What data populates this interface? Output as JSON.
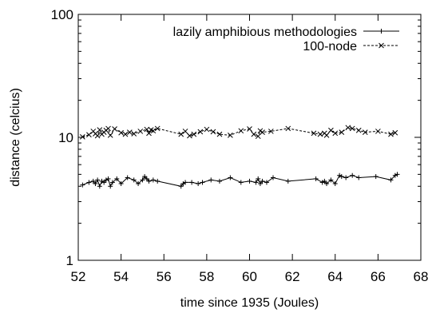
{
  "chart_data": {
    "type": "line",
    "title": "",
    "xlabel": "time since 1935 (Joules)",
    "ylabel": "distance (celcius)",
    "xlim": [
      52,
      68
    ],
    "ylim": [
      1,
      100
    ],
    "yscale": "log",
    "xticks": [
      "52",
      "54",
      "56",
      "58",
      "60",
      "62",
      "64",
      "66",
      "68"
    ],
    "yticks": [
      "1",
      "10",
      "100"
    ],
    "legend_position": "top-right",
    "grid": false,
    "series": [
      {
        "name": "lazily amphibious methodologies",
        "line_style": "solid",
        "marker": "plus",
        "color": "#000000",
        "x": [
          52.2,
          52.5,
          52.7,
          52.8,
          52.9,
          53.0,
          53.1,
          53.2,
          53.3,
          53.4,
          53.5,
          53.6,
          53.8,
          54.0,
          54.3,
          54.6,
          54.8,
          55.0,
          55.1,
          55.2,
          55.3,
          55.5,
          55.7,
          56.8,
          56.9,
          57.0,
          57.3,
          57.6,
          57.8,
          58.2,
          58.6,
          59.1,
          59.6,
          60.0,
          60.3,
          60.4,
          60.5,
          60.6,
          60.8,
          61.1,
          61.8,
          63.1,
          63.4,
          63.5,
          63.6,
          63.8,
          64.0,
          64.2,
          64.3,
          64.5,
          64.8,
          65.1,
          65.9,
          66.6,
          66.8,
          66.9
        ],
        "y": [
          4.1,
          4.3,
          4.4,
          4.2,
          4.5,
          4.0,
          4.4,
          4.3,
          4.5,
          4.6,
          4.0,
          4.3,
          4.6,
          4.2,
          4.7,
          4.5,
          4.2,
          4.5,
          4.8,
          4.6,
          4.4,
          4.5,
          4.4,
          4.0,
          4.2,
          4.3,
          4.3,
          4.2,
          4.3,
          4.5,
          4.4,
          4.7,
          4.3,
          4.4,
          4.3,
          4.6,
          4.2,
          4.4,
          4.3,
          4.7,
          4.4,
          4.6,
          4.3,
          4.4,
          4.2,
          4.5,
          4.2,
          4.9,
          4.8,
          4.7,
          4.9,
          4.7,
          4.8,
          4.5,
          4.9,
          5.0
        ]
      },
      {
        "name": "100-node",
        "line_style": "dashed",
        "marker": "x",
        "color": "#000000",
        "x": [
          52.2,
          52.5,
          52.7,
          52.8,
          52.9,
          53.0,
          53.1,
          53.2,
          53.3,
          53.4,
          53.5,
          53.7,
          54.0,
          54.2,
          54.4,
          54.6,
          54.9,
          55.2,
          55.3,
          55.4,
          55.5,
          55.7,
          56.8,
          57.0,
          57.2,
          57.4,
          57.7,
          58.0,
          58.3,
          58.6,
          59.1,
          59.6,
          60.0,
          60.2,
          60.4,
          60.5,
          60.6,
          61.0,
          61.8,
          63.0,
          63.3,
          63.5,
          63.6,
          63.8,
          64.0,
          64.3,
          64.6,
          64.8,
          65.1,
          65.4,
          66.0,
          66.6,
          66.8
        ],
        "y": [
          10.1,
          10.5,
          11.2,
          10.7,
          10.3,
          11.5,
          10.6,
          11.0,
          11.4,
          11.8,
          10.4,
          11.7,
          10.9,
          10.6,
          11.0,
          10.7,
          11.2,
          11.6,
          10.8,
          11.5,
          11.3,
          11.8,
          10.6,
          11.2,
          10.3,
          10.6,
          11.1,
          11.6,
          11.1,
          10.6,
          10.4,
          11.3,
          11.7,
          10.6,
          10.2,
          11.3,
          11.0,
          11.2,
          11.8,
          10.8,
          10.6,
          10.8,
          10.4,
          11.4,
          10.8,
          11.0,
          12.0,
          11.8,
          11.4,
          11.0,
          11.2,
          10.6,
          10.9
        ]
      }
    ]
  }
}
